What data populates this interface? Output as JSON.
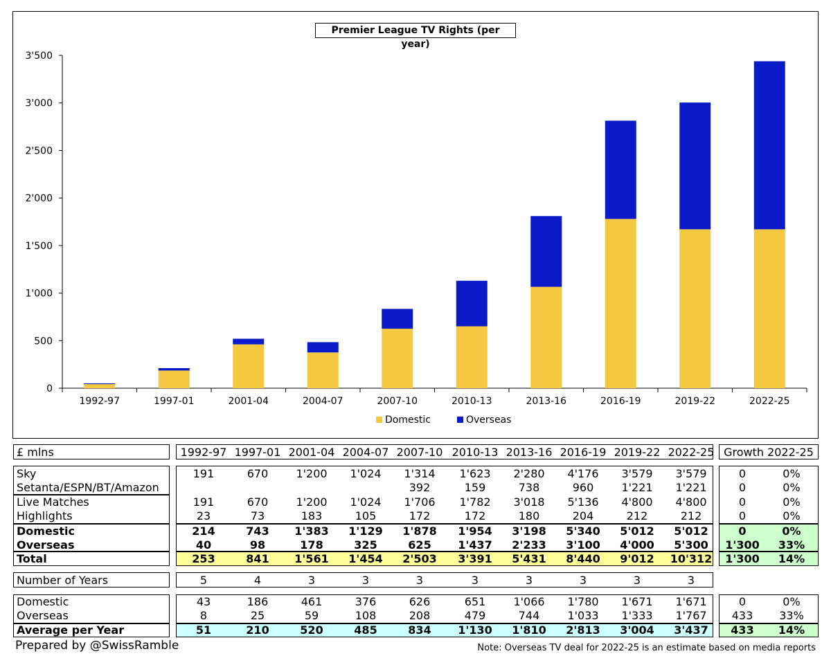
{
  "chart_data": {
    "type": "bar",
    "stacked": true,
    "title": "Premier League TV Rights (per year)",
    "categories": [
      "1992-97",
      "1997-01",
      "2001-04",
      "2004-07",
      "2007-10",
      "2010-13",
      "2013-16",
      "2016-19",
      "2019-22",
      "2022-25"
    ],
    "series": [
      {
        "name": "Domestic",
        "color": "#F5C842",
        "values": [
          43,
          186,
          461,
          376,
          626,
          651,
          1066,
          1780,
          1671,
          1671
        ]
      },
      {
        "name": "Overseas",
        "color": "#0A1AC8",
        "values": [
          8,
          25,
          59,
          108,
          208,
          479,
          744,
          1033,
          1333,
          1767
        ]
      }
    ],
    "ylim": [
      0,
      3500
    ],
    "yticks": [
      "0",
      "500",
      "1'000",
      "1'500",
      "2'000",
      "2'500",
      "3'000",
      "3'500"
    ],
    "ytick_values": [
      0,
      500,
      1000,
      1500,
      2000,
      2500,
      3000,
      3500
    ],
    "legend_position": "bottom"
  },
  "table": {
    "unit_label": "£ mlns",
    "periods": [
      "1992-97",
      "1997-01",
      "2001-04",
      "2004-07",
      "2007-10",
      "2010-13",
      "2013-16",
      "2016-19",
      "2019-22",
      "2022-25"
    ],
    "growth_header": "Growth 2022-25",
    "rows_a": [
      {
        "label": "Sky",
        "values": [
          "191",
          "670",
          "1'200",
          "1'024",
          "1'314",
          "1'623",
          "2'280",
          "4'176",
          "3'579",
          "3'579"
        ],
        "g1": "0",
        "g2": "0%"
      },
      {
        "label": "Setanta/ESPN/BT/Amazon",
        "values": [
          "",
          "",
          "",
          "",
          "392",
          "159",
          "738",
          "960",
          "1'221",
          "1'221"
        ],
        "g1": "0",
        "g2": "0%"
      }
    ],
    "rows_b": [
      {
        "label": "Live Matches",
        "values": [
          "191",
          "670",
          "1'200",
          "1'024",
          "1'706",
          "1'782",
          "3'018",
          "5'136",
          "4'800",
          "4'800"
        ],
        "g1": "0",
        "g2": "0%"
      },
      {
        "label": "Highlights",
        "values": [
          "23",
          "73",
          "183",
          "105",
          "172",
          "172",
          "180",
          "204",
          "212",
          "212"
        ],
        "g1": "0",
        "g2": "0%"
      }
    ],
    "rows_c": [
      {
        "label": "Domestic",
        "values": [
          "214",
          "743",
          "1'383",
          "1'129",
          "1'878",
          "1'954",
          "3'198",
          "5'340",
          "5'012",
          "5'012"
        ],
        "g1": "0",
        "g2": "0%"
      },
      {
        "label": "Overseas",
        "values": [
          "40",
          "98",
          "178",
          "325",
          "625",
          "1'437",
          "2'233",
          "3'100",
          "4'000",
          "5'300"
        ],
        "g1": "1'300",
        "g2": "33%"
      }
    ],
    "total": {
      "label": "Total",
      "values": [
        "253",
        "841",
        "1'561",
        "1'454",
        "2'503",
        "3'391",
        "5'431",
        "8'440",
        "9'012",
        "10'312"
      ],
      "g1": "1'300",
      "g2": "14%"
    },
    "years": {
      "label": "Number of Years",
      "values": [
        "5",
        "4",
        "3",
        "3",
        "3",
        "3",
        "3",
        "3",
        "3",
        "3"
      ]
    },
    "avg_rows": [
      {
        "label": "Domestic",
        "values": [
          "43",
          "186",
          "461",
          "376",
          "626",
          "651",
          "1'066",
          "1'780",
          "1'671",
          "1'671"
        ],
        "g1": "0",
        "g2": "0%"
      },
      {
        "label": "Overseas",
        "values": [
          "8",
          "25",
          "59",
          "108",
          "208",
          "479",
          "744",
          "1'033",
          "1'333",
          "1'767"
        ],
        "g1": "433",
        "g2": "33%"
      }
    ],
    "avg_total": {
      "label": "Average per Year",
      "values": [
        "51",
        "210",
        "520",
        "485",
        "834",
        "1'130",
        "1'810",
        "2'813",
        "3'004",
        "3'437"
      ],
      "g1": "433",
      "g2": "14%"
    }
  },
  "footer": {
    "left": "Prepared by @SwissRamble",
    "right": "Note: Overseas TV deal for 2022-25 is an estimate based on media reports"
  }
}
